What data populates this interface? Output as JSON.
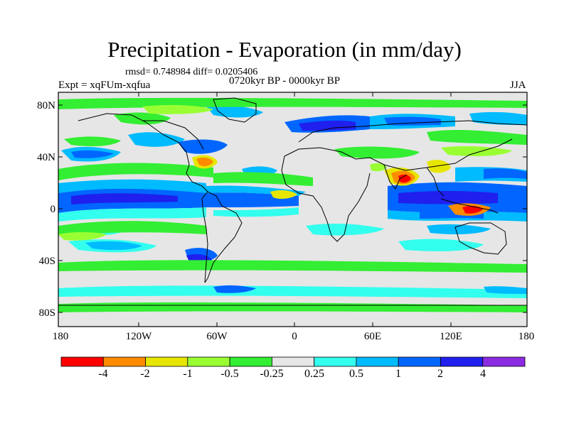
{
  "title": "Precipitation - Evaporation (in mm/day)",
  "stats": "rmsd= 0.748984 diff= 0.0205406",
  "period": "0720kyr BP - 0000kyr BP",
  "experiment": "Expt = xqFUm-xqfua",
  "season": "JJA",
  "y_ticks": [
    "80N",
    "40N",
    "0",
    "40S",
    "80S"
  ],
  "x_ticks": [
    "180",
    "120W",
    "60W",
    "0",
    "60E",
    "120E",
    "180"
  ],
  "colorbar": {
    "colors": [
      "#ff0000",
      "#ff8c00",
      "#e6e600",
      "#99ff33",
      "#33ee33",
      "#e6e6e6",
      "#33ffee",
      "#00bbff",
      "#0066ff",
      "#1f1fee",
      "#8b2be2"
    ],
    "labels": [
      "-4",
      "-2",
      "-1",
      "-0.5",
      "-0.25",
      "0.25",
      "0.5",
      "1",
      "2",
      "4"
    ]
  }
}
